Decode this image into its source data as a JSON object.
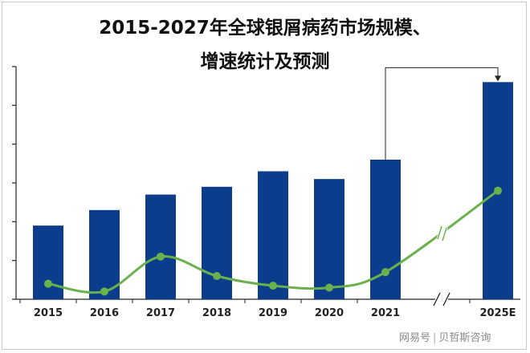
{
  "title": {
    "line1": "2015-2027年全球银屑病药市场规模、",
    "line2": "增速统计及预测"
  },
  "watermark": {
    "platform": "网易号",
    "source": "贝哲斯咨询"
  },
  "chart_data": {
    "type": "bar",
    "categories": [
      "2015",
      "2016",
      "2017",
      "2018",
      "2019",
      "2020",
      "2021",
      "2025E"
    ],
    "series": [
      {
        "type": "bar",
        "values": [
          19,
          23,
          27,
          29,
          33,
          31,
          36,
          56
        ],
        "color": "#0b3d8c"
      },
      {
        "type": "line",
        "values": [
          4,
          2,
          11,
          6,
          3.5,
          3,
          7,
          28
        ],
        "color": "#6ab04c"
      }
    ],
    "ylim": [
      0,
      60
    ],
    "yticks": [
      0,
      10,
      20,
      30,
      40,
      50,
      60
    ],
    "show_y_tick_labels": false,
    "axis_break_between": [
      "2021",
      "2025E"
    ],
    "annotation_arrow": {
      "from": "2021",
      "to": "2025E"
    },
    "grid": false
  }
}
